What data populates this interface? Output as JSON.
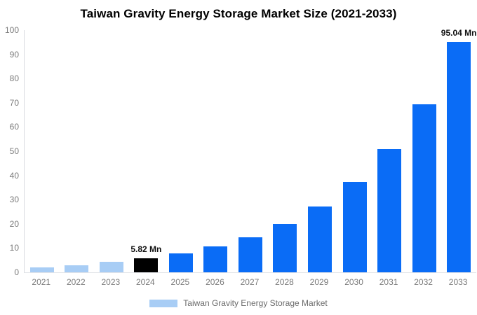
{
  "title": "Taiwan Gravity Energy Storage Market Size (2021-2033)",
  "colors": {
    "bar_historical": "#a8cdf5",
    "bar_highlight": "#000000",
    "bar_forecast": "#0a6cf6",
    "axis_line": "#d8dbe0",
    "baseline": "#e2e4e8",
    "tick_text": "#7a7a7a",
    "data_label_text": "#111111",
    "legend_text": "#6b6b6b"
  },
  "chart_data": {
    "type": "bar",
    "title": "Taiwan Gravity Energy Storage Market Size (2021-2033)",
    "xlabel": "",
    "ylabel": "",
    "ylim": [
      0,
      100
    ],
    "y_ticks": [
      0,
      10,
      20,
      30,
      40,
      50,
      60,
      70,
      80,
      90,
      100
    ],
    "grid": false,
    "categories": [
      "2021",
      "2022",
      "2023",
      "2024",
      "2025",
      "2026",
      "2027",
      "2028",
      "2029",
      "2030",
      "2031",
      "2032",
      "2033"
    ],
    "series": [
      {
        "name": "Taiwan Gravity Energy Storage Market",
        "values": [
          2.0,
          2.9,
          4.2,
          5.82,
          7.7,
          10.6,
          14.5,
          20.0,
          27.2,
          37.3,
          51.0,
          69.5,
          95.04
        ],
        "unit": "Mn"
      }
    ],
    "bar_colors": [
      "#a8cdf5",
      "#a8cdf5",
      "#a8cdf5",
      "#000000",
      "#0a6cf6",
      "#0a6cf6",
      "#0a6cf6",
      "#0a6cf6",
      "#0a6cf6",
      "#0a6cf6",
      "#0a6cf6",
      "#0a6cf6",
      "#0a6cf6"
    ],
    "data_labels": {
      "2024": "5.82 Mn",
      "2033": "95.04 Mn"
    },
    "legend": {
      "position": "bottom",
      "entries": [
        {
          "label": "Taiwan Gravity Energy Storage Market",
          "swatch_color": "#a8cdf5"
        }
      ]
    }
  }
}
